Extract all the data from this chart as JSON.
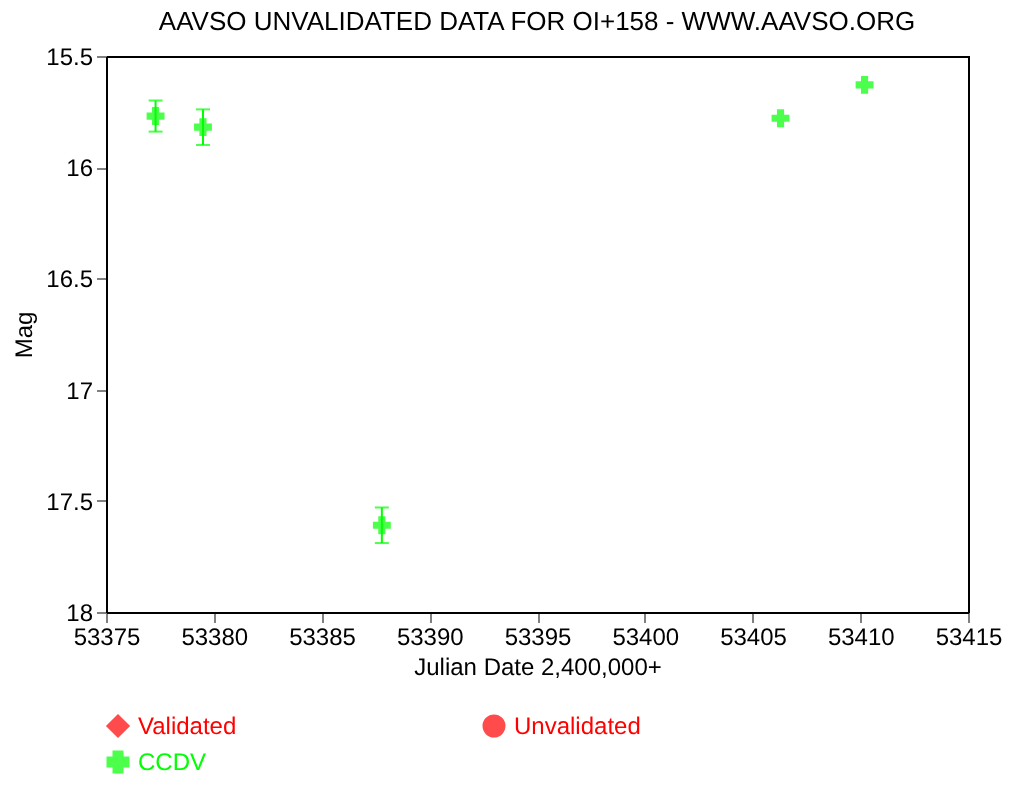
{
  "chart_data": {
    "type": "scatter",
    "title": "AAVSO UNVALIDATED DATA FOR OI+158 - WWW.AAVSO.ORG",
    "xlabel": "Julian Date 2,400,000+",
    "ylabel": "Mag",
    "series": [
      {
        "name": "Validated",
        "color": "#ff0000",
        "marker": "diamond"
      },
      {
        "name": "Unvalidated",
        "color": "#ff0000",
        "marker": "circle"
      },
      {
        "name": "CCDV",
        "color": "#00ff00",
        "marker": "cross",
        "x": [
          53377.3,
          53379.5,
          53387.8,
          53406.3,
          53410.2
        ],
        "values": [
          15.77,
          15.82,
          17.61,
          15.78,
          15.63
        ],
        "errors": [
          0.07,
          0.08,
          0.08,
          null,
          null
        ]
      }
    ],
    "xlim": [
      53375,
      53415
    ],
    "xticks": [
      53375,
      53380,
      53385,
      53390,
      53395,
      53400,
      53405,
      53410,
      53415
    ],
    "ylim": [
      18,
      15.5
    ],
    "yticks": [
      15.5,
      16,
      16.5,
      17,
      17.5,
      18
    ],
    "grid": false,
    "legend": "bottom"
  }
}
